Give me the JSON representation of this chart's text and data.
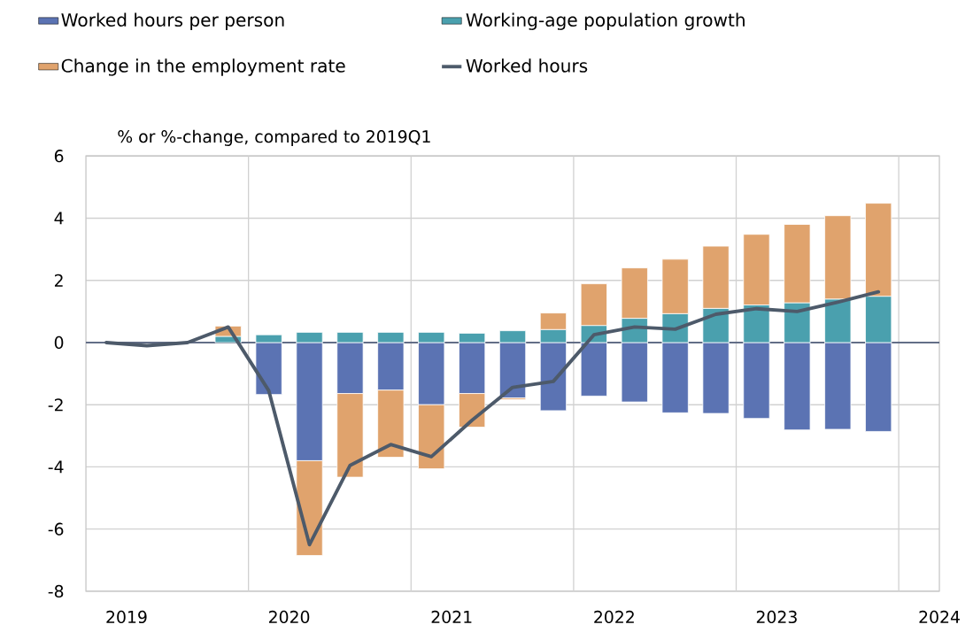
{
  "chart_data": {
    "type": "bar",
    "stacked": true,
    "ylabel": "% or %-change, compared to 2019Q1",
    "x": [
      2019.125,
      2019.375,
      2019.625,
      2019.875,
      2020.125,
      2020.375,
      2020.625,
      2020.875,
      2021.125,
      2021.375,
      2021.625,
      2021.875,
      2022.125,
      2022.375,
      2022.625,
      2022.875,
      2023.125,
      2023.375,
      2023.625,
      2023.875
    ],
    "series": [
      {
        "name": "Worked hours per person",
        "color": "#5b73b3",
        "values": [
          0,
          0,
          0,
          0,
          -1.67,
          -3.8,
          -1.64,
          -1.53,
          -2.0,
          -1.64,
          -1.78,
          -2.19,
          -1.72,
          -1.91,
          -2.26,
          -2.28,
          -2.44,
          -2.81,
          -2.79,
          -2.86
        ]
      },
      {
        "name": "Working-age population growth",
        "color": "#4aa0ae",
        "values": [
          0,
          0,
          0,
          0.2,
          0.25,
          0.33,
          0.33,
          0.33,
          0.33,
          0.3,
          0.38,
          0.42,
          0.55,
          0.78,
          0.93,
          1.1,
          1.21,
          1.28,
          1.4,
          1.49
        ]
      },
      {
        "name": "Change in the employment rate",
        "color": "#e0a36d",
        "values": [
          0,
          0,
          0,
          0.33,
          0,
          -3.05,
          -2.69,
          -2.16,
          -2.06,
          -1.08,
          -0.05,
          0.53,
          1.34,
          1.62,
          1.75,
          2.0,
          2.27,
          2.52,
          2.68,
          2.99
        ]
      },
      {
        "name": "Worked hours",
        "type": "line",
        "color": "#4d5a6a",
        "values": [
          0,
          -0.1,
          0,
          0.5,
          -1.55,
          -6.5,
          -3.95,
          -3.28,
          -3.67,
          -2.5,
          -1.44,
          -1.25,
          0.25,
          0.5,
          0.43,
          0.91,
          1.09,
          1.0,
          1.3,
          1.63
        ]
      }
    ],
    "xlim": [
      2019,
      2024.25
    ],
    "xticks": [
      {
        "value": 2019.25,
        "label": "2019"
      },
      {
        "value": 2020,
        "label": null
      },
      {
        "value": 2020.25,
        "label": "2020"
      },
      {
        "value": 2021,
        "label": null
      },
      {
        "value": 2021.25,
        "label": "2021"
      },
      {
        "value": 2022,
        "label": null
      },
      {
        "value": 2022.25,
        "label": "2022"
      },
      {
        "value": 2023,
        "label": null
      },
      {
        "value": 2023.25,
        "label": "2023"
      },
      {
        "value": 2024,
        "label": null
      },
      {
        "value": 2024.25,
        "label": "2024"
      }
    ],
    "ylim": [
      -8,
      6
    ],
    "yticks": [
      -8,
      -6,
      -4,
      -2,
      0,
      2,
      4,
      6
    ],
    "ref_lines": [
      {
        "axis": "y",
        "value": 0,
        "color": "#3b4a6b"
      }
    ],
    "grid": true,
    "legend": "top",
    "marker": "none",
    "line_style": "solid"
  }
}
